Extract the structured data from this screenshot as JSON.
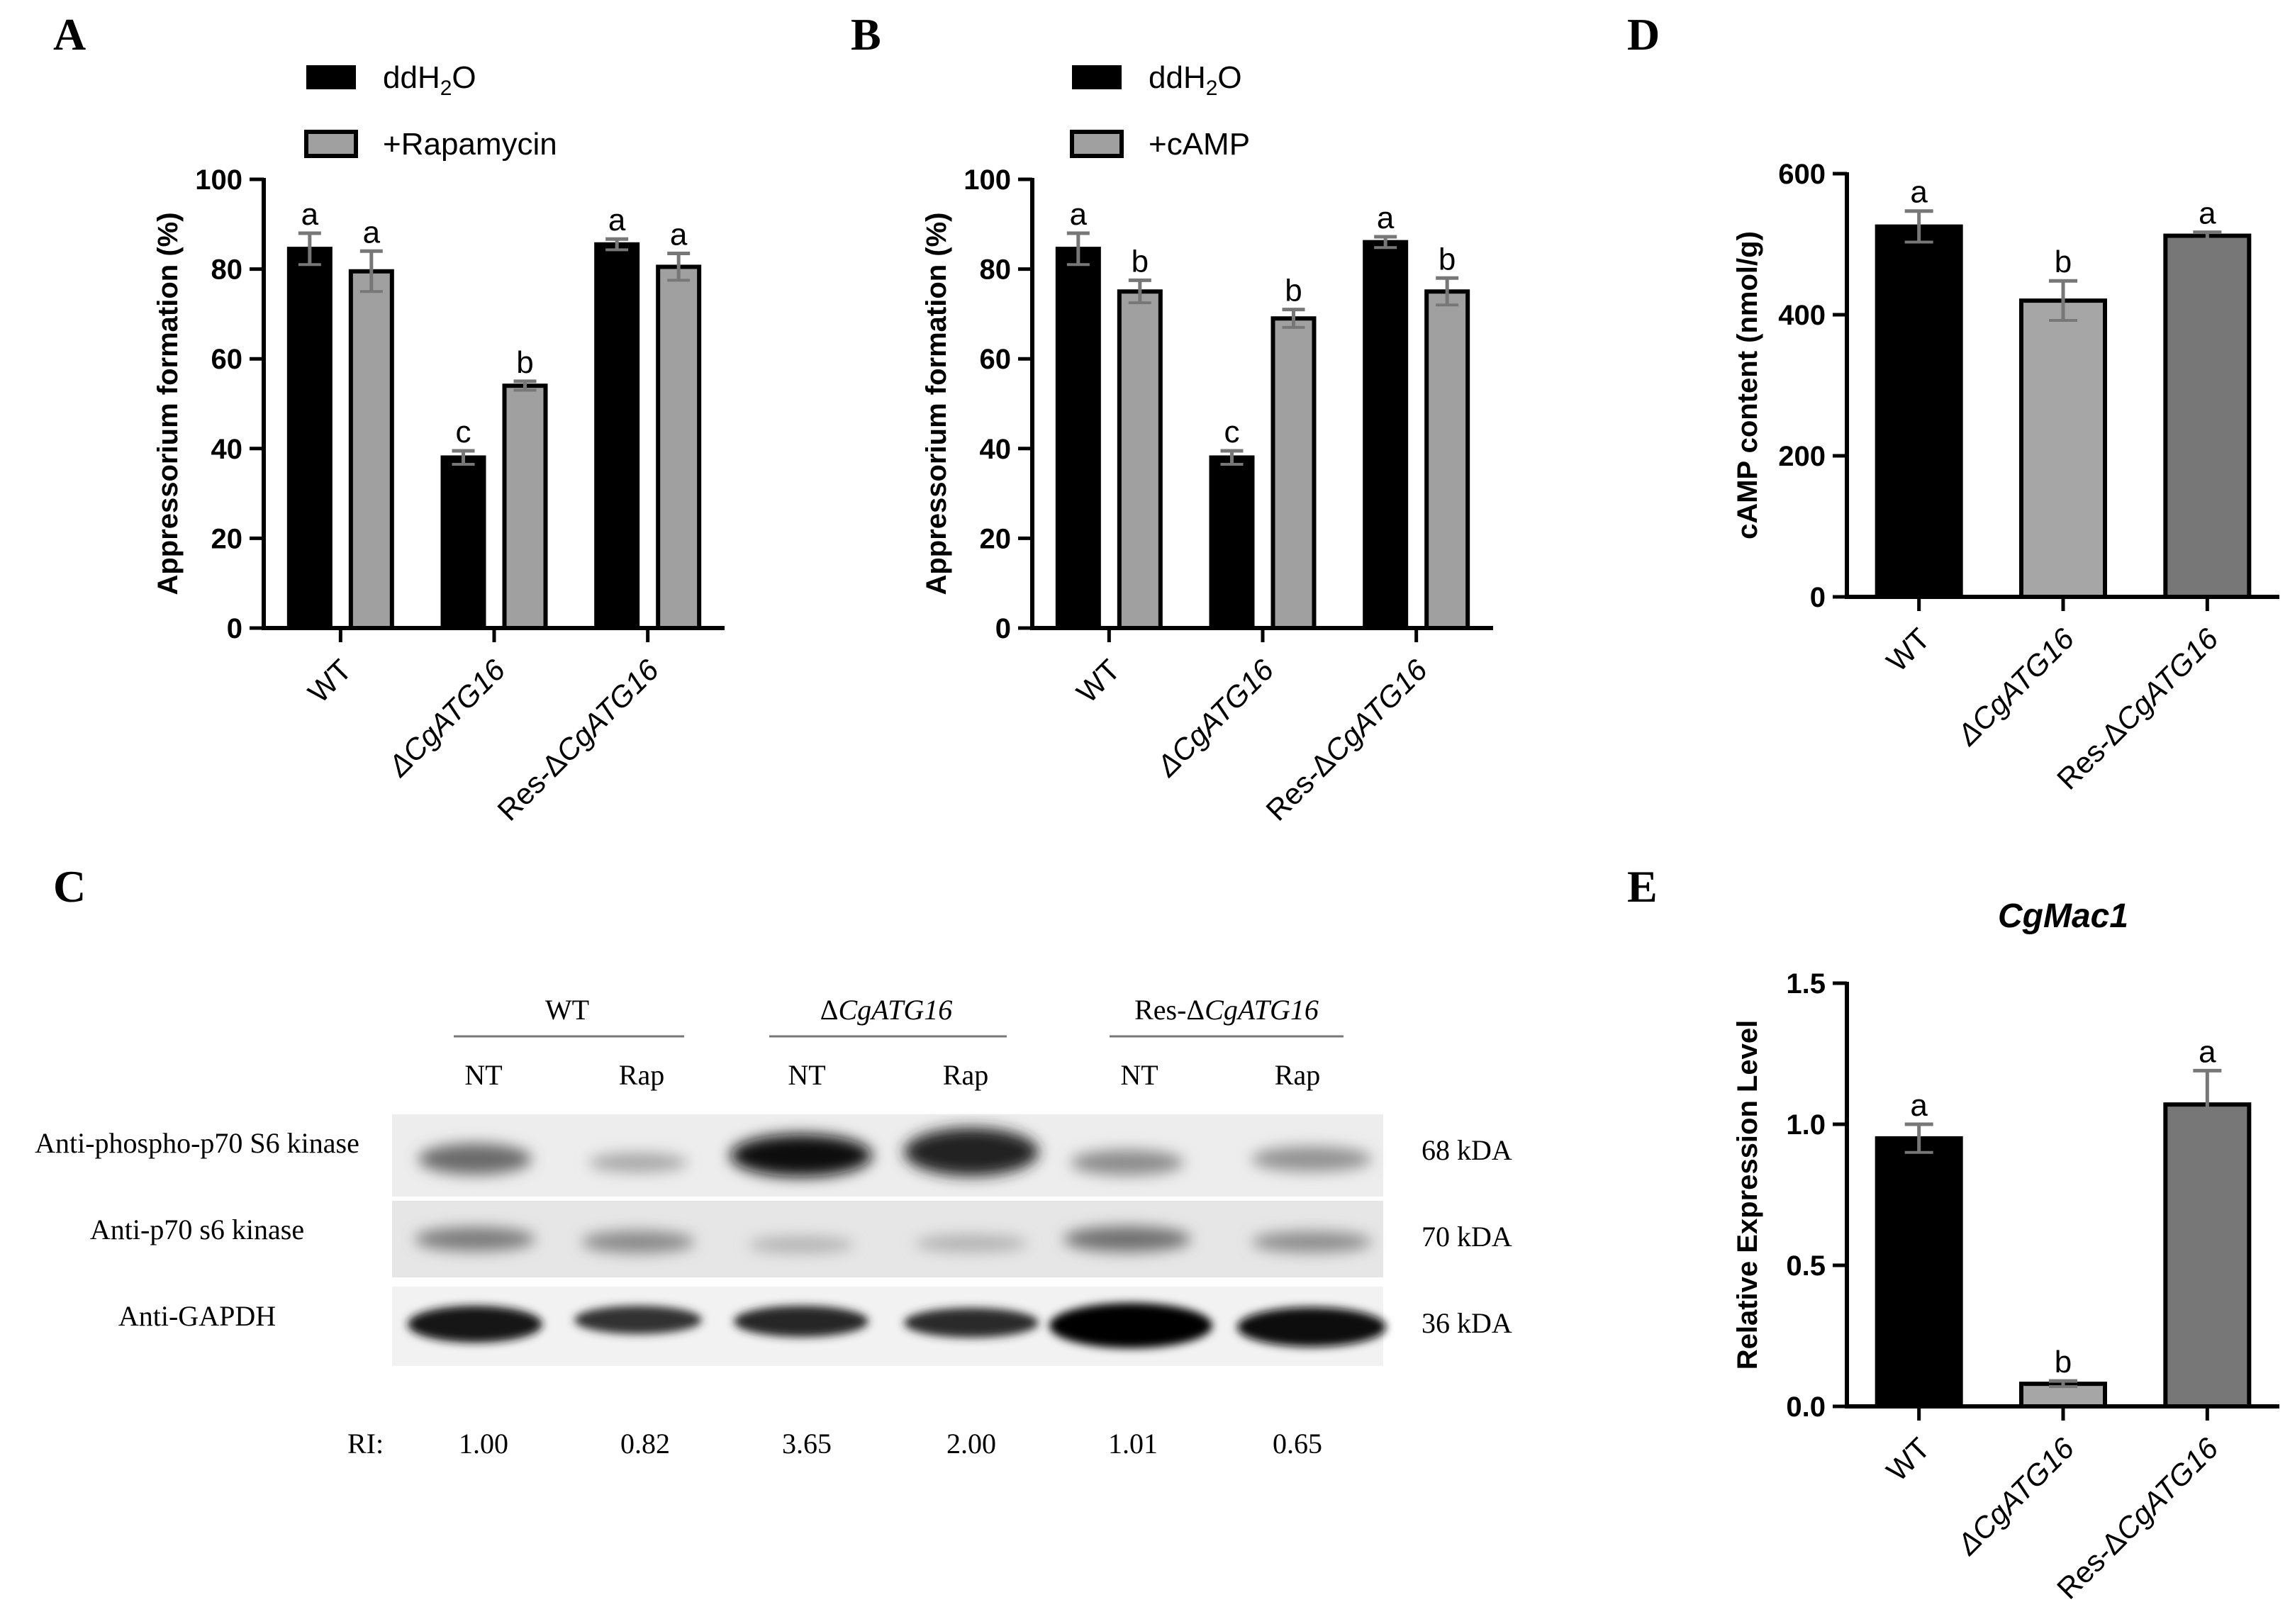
{
  "chart_data": [
    {
      "panel": "A",
      "type": "bar",
      "categories": [
        "WT",
        "ΔCgATG16",
        "Res-ΔCgATG16"
      ],
      "ylabel": "Appressorium formation (%)",
      "ylim": [
        0,
        100
      ],
      "yticks": [
        0,
        20,
        40,
        60,
        80,
        100
      ],
      "series": [
        {
          "name": "ddH2O",
          "color": "#000000",
          "values": [
            84.5,
            38,
            85.5
          ],
          "errors": [
            3.5,
            1.5,
            1.2
          ],
          "letters": [
            "a",
            "c",
            "a"
          ]
        },
        {
          "name": "+Rapamycin",
          "color": "#a0a0a0",
          "values": [
            79.5,
            54,
            80.5
          ],
          "errors": [
            4.5,
            1.0,
            3.0
          ],
          "letters": [
            "a",
            "b",
            "a"
          ]
        }
      ],
      "legend": "top-left"
    },
    {
      "panel": "B",
      "type": "bar",
      "categories": [
        "WT",
        "ΔCgATG16",
        "Res-ΔCgATG16"
      ],
      "ylabel": "Appressorium formation (%)",
      "ylim": [
        0,
        100
      ],
      "yticks": [
        0,
        20,
        40,
        60,
        80,
        100
      ],
      "series": [
        {
          "name": "ddH2O",
          "color": "#000000",
          "values": [
            84.5,
            38,
            86
          ],
          "errors": [
            3.5,
            1.5,
            1.2
          ],
          "letters": [
            "a",
            "c",
            "a"
          ]
        },
        {
          "name": "+cAMP",
          "color": "#a0a0a0",
          "values": [
            75,
            69,
            75
          ],
          "errors": [
            2.5,
            2.0,
            3.0
          ],
          "letters": [
            "b",
            "b",
            "b"
          ]
        }
      ],
      "legend": "top-left"
    },
    {
      "panel": "D",
      "type": "bar",
      "categories": [
        "WT",
        "ΔCgATG16",
        "Res-ΔCgATG16"
      ],
      "ylabel": "cAMP content (nmol/g)",
      "ylim": [
        0,
        600
      ],
      "yticks": [
        0,
        200,
        400,
        600
      ],
      "series": [
        {
          "values": [
            525,
            420,
            512
          ],
          "errors": [
            22,
            28,
            5
          ],
          "letters": [
            "a",
            "b",
            "a"
          ],
          "colors": [
            "#000000",
            "#a6a6a6",
            "#777777"
          ]
        }
      ]
    },
    {
      "panel": "E",
      "type": "bar",
      "title": "CgMac1",
      "categories": [
        "WT",
        "ΔCgATG16",
        "Res-ΔCgATG16"
      ],
      "ylabel": "Relative Expression Level",
      "ylim": [
        0,
        1.5
      ],
      "yticks": [
        "0.0",
        "0.5",
        "1.0",
        "1.5"
      ],
      "series": [
        {
          "values": [
            0.95,
            0.08,
            1.07
          ],
          "errors": [
            0.05,
            0.01,
            0.12
          ],
          "letters": [
            "a",
            "b",
            "a"
          ],
          "colors": [
            "#000000",
            "#a6a6a6",
            "#777777"
          ]
        }
      ]
    }
  ],
  "legend_A": {
    "ddh2o_prefix": "ddH",
    "ddh2o_sub": "2",
    "ddh2o_suffix": "O",
    "second": "+Rapamycin"
  },
  "legend_B": {
    "ddh2o_prefix": "ddH",
    "ddh2o_sub": "2",
    "ddh2o_suffix": "O",
    "second": "+cAMP"
  },
  "panel_labels": {
    "a": "A",
    "b": "B",
    "c": "C",
    "d": "D",
    "e": "E"
  },
  "blot": {
    "groups": [
      {
        "delta": "",
        "name": "WT"
      },
      {
        "delta": "Δ",
        "name": "CgATG16"
      },
      {
        "delta": "Res-Δ",
        "name": "CgATG16"
      }
    ],
    "lanes": [
      "NT",
      "Rap",
      "NT",
      "Rap",
      "NT",
      "Rap"
    ],
    "rows": [
      {
        "label": "Anti-phospho-p70 S6 kinase",
        "size": "68 kDA"
      },
      {
        "label": "Anti-p70 s6 kinase",
        "size": "70 kDA"
      },
      {
        "label": "Anti-GAPDH",
        "size": "36 kDA"
      }
    ],
    "ri_label": "RI:",
    "ri_values": [
      "1.00",
      "0.82",
      "3.65",
      "2.00",
      "1.01",
      "0.65"
    ]
  }
}
